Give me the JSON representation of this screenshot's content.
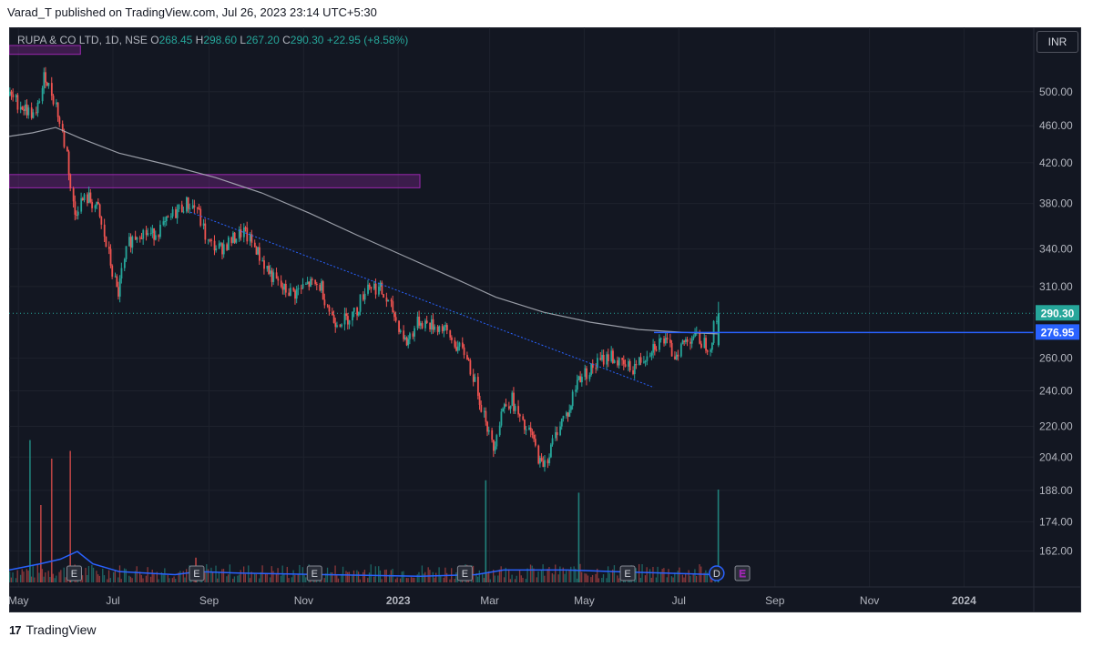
{
  "header": {
    "published": "Varad_T published on TradingView.com, Jul 26, 2023 23:14 UTC+5:30"
  },
  "legend": {
    "symbol": "RUPA & CO LTD, 1D, NSE",
    "o_label": "O",
    "o_value": "268.45",
    "h_label": "H",
    "h_value": "298.60",
    "l_label": "L",
    "l_value": "267.20",
    "c_label": "C",
    "c_value": "290.30",
    "change": "+22.95 (+8.58%)"
  },
  "currency": "INR",
  "footer": {
    "brand": "TradingView",
    "logo": "17"
  },
  "colors": {
    "background": "#131722",
    "grid": "#1e222d",
    "up": "#26a69a",
    "down": "#ef5350",
    "ma": "#b2b5be",
    "zone": "#9c27b0",
    "level": "#2962ff",
    "trend": "#2962ff"
  },
  "chart_data": {
    "type": "candlestick",
    "y_scale": "log",
    "y_ticks": [
      162,
      174,
      188,
      204,
      220,
      240,
      260,
      276.95,
      290.3,
      310,
      340,
      380,
      420,
      460,
      500
    ],
    "y_tick_labels": [
      "162.00",
      "174.00",
      "188.00",
      "204.00",
      "220.00",
      "240.00",
      "260.00",
      "276.95",
      "290.30",
      "310.00",
      "340.00",
      "380.00",
      "420.00",
      "460.00",
      "500.00"
    ],
    "x_range": [
      "2022-04-25",
      "2024-02-15"
    ],
    "x_ticks": [
      {
        "date": "2022-05-01",
        "label": "May"
      },
      {
        "date": "2022-07-01",
        "label": "Jul"
      },
      {
        "date": "2022-09-01",
        "label": "Sep"
      },
      {
        "date": "2022-11-01",
        "label": "Nov"
      },
      {
        "date": "2023-01-01",
        "label": "2023"
      },
      {
        "date": "2023-03-01",
        "label": "Mar"
      },
      {
        "date": "2023-05-01",
        "label": "May"
      },
      {
        "date": "2023-07-01",
        "label": "Jul"
      },
      {
        "date": "2023-09-01",
        "label": "Sep"
      },
      {
        "date": "2023-11-01",
        "label": "Nov"
      },
      {
        "date": "2024-01-01",
        "label": "2024"
      }
    ],
    "close_path": [
      [
        "2022-04-25",
        495
      ],
      [
        "2022-05-05",
        480
      ],
      [
        "2022-05-12",
        470
      ],
      [
        "2022-05-18",
        520
      ],
      [
        "2022-05-25",
        485
      ],
      [
        "2022-06-01",
        430
      ],
      [
        "2022-06-06",
        370
      ],
      [
        "2022-06-10",
        382
      ],
      [
        "2022-06-15",
        385
      ],
      [
        "2022-06-21",
        375
      ],
      [
        "2022-06-28",
        335
      ],
      [
        "2022-07-04",
        305
      ],
      [
        "2022-07-11",
        345
      ],
      [
        "2022-07-18",
        355
      ],
      [
        "2022-07-26",
        352
      ],
      [
        "2022-08-03",
        360
      ],
      [
        "2022-08-10",
        372
      ],
      [
        "2022-08-17",
        380
      ],
      [
        "2022-08-24",
        376
      ],
      [
        "2022-08-31",
        345
      ],
      [
        "2022-09-08",
        340
      ],
      [
        "2022-09-16",
        348
      ],
      [
        "2022-09-23",
        355
      ],
      [
        "2022-10-01",
        340
      ],
      [
        "2022-10-10",
        320
      ],
      [
        "2022-10-18",
        308
      ],
      [
        "2022-10-26",
        305
      ],
      [
        "2022-11-04",
        312
      ],
      [
        "2022-11-12",
        310
      ],
      [
        "2022-11-20",
        285
      ],
      [
        "2022-11-28",
        286
      ],
      [
        "2022-12-05",
        292
      ],
      [
        "2022-12-12",
        312
      ],
      [
        "2022-12-20",
        308
      ],
      [
        "2022-12-28",
        292
      ],
      [
        "2023-01-06",
        270
      ],
      [
        "2023-01-14",
        285
      ],
      [
        "2023-01-22",
        282
      ],
      [
        "2023-01-30",
        280
      ],
      [
        "2023-02-07",
        268
      ],
      [
        "2023-02-14",
        262
      ],
      [
        "2023-02-21",
        240
      ],
      [
        "2023-02-26",
        225
      ],
      [
        "2023-03-03",
        208
      ],
      [
        "2023-03-09",
        230
      ],
      [
        "2023-03-15",
        235
      ],
      [
        "2023-03-22",
        220
      ],
      [
        "2023-03-28",
        215
      ],
      [
        "2023-04-03",
        200
      ],
      [
        "2023-04-08",
        205
      ],
      [
        "2023-04-15",
        222
      ],
      [
        "2023-04-21",
        228
      ],
      [
        "2023-04-27",
        248
      ],
      [
        "2023-05-04",
        252
      ],
      [
        "2023-05-11",
        258
      ],
      [
        "2023-05-18",
        262
      ],
      [
        "2023-05-25",
        255
      ],
      [
        "2023-06-01",
        254
      ],
      [
        "2023-06-08",
        260
      ],
      [
        "2023-06-14",
        268
      ],
      [
        "2023-06-21",
        272
      ],
      [
        "2023-06-28",
        262
      ],
      [
        "2023-07-04",
        270
      ],
      [
        "2023-07-10",
        275
      ],
      [
        "2023-07-17",
        270
      ],
      [
        "2023-07-21",
        268
      ],
      [
        "2023-07-26",
        290.3
      ]
    ],
    "moving_average": [
      [
        "2022-04-25",
        448
      ],
      [
        "2022-05-10",
        452
      ],
      [
        "2022-05-25",
        458
      ],
      [
        "2022-06-10",
        446
      ],
      [
        "2022-07-05",
        430
      ],
      [
        "2022-08-05",
        418
      ],
      [
        "2022-09-05",
        405
      ],
      [
        "2022-10-05",
        390
      ],
      [
        "2022-11-05",
        371
      ],
      [
        "2022-12-05",
        352
      ],
      [
        "2023-01-05",
        334
      ],
      [
        "2023-02-05",
        317
      ],
      [
        "2023-03-05",
        302
      ],
      [
        "2023-04-05",
        291
      ],
      [
        "2023-05-05",
        284
      ],
      [
        "2023-06-05",
        279
      ],
      [
        "2023-07-05",
        277
      ],
      [
        "2023-07-26",
        276
      ]
    ],
    "last_candle": {
      "date": "2023-07-26",
      "open": 268.45,
      "high": 298.6,
      "low": 267.2,
      "close": 290.3
    },
    "horizontal_level": {
      "price": 276.95,
      "from": "2023-06-15",
      "to": "2024-02-15"
    },
    "trendline": {
      "from": [
        "2022-08-20",
        372
      ],
      "to": [
        "2023-06-15",
        242
      ]
    },
    "supply_zone": {
      "price_low": 395,
      "price_high": 408,
      "from": "2022-04-25",
      "to": "2023-01-15"
    },
    "top_zone": {
      "price_low": 548,
      "price_high": 560,
      "from": "2022-04-25",
      "to": "2022-06-10"
    },
    "earnings_markers": [
      "2022-06-06",
      "2022-08-24",
      "2022-11-08",
      "2023-02-13",
      "2023-05-29",
      "2023-08-11"
    ],
    "dividend_markers": [
      "2023-08-05"
    ],
    "marker_labels": {
      "earnings": "E",
      "dividend": "D"
    },
    "volume_spikes": [
      [
        "2022-05-08",
        0.92
      ],
      [
        "2022-05-22",
        0.8
      ],
      [
        "2022-06-03",
        0.85
      ],
      [
        "2022-05-15",
        0.5
      ],
      [
        "2022-08-23",
        0.16
      ],
      [
        "2023-02-26",
        0.66
      ],
      [
        "2023-04-27",
        0.58
      ],
      [
        "2023-07-26",
        0.6
      ]
    ],
    "avg_volume_curve": [
      [
        "2022-04-25",
        0.08
      ],
      [
        "2022-05-15",
        0.12
      ],
      [
        "2022-05-28",
        0.15
      ],
      [
        "2022-06-08",
        0.2
      ],
      [
        "2022-06-18",
        0.12
      ],
      [
        "2022-07-05",
        0.07
      ],
      [
        "2022-08-10",
        0.05
      ],
      [
        "2022-08-25",
        0.07
      ],
      [
        "2022-09-20",
        0.06
      ],
      [
        "2022-11-15",
        0.05
      ],
      [
        "2023-01-15",
        0.04
      ],
      [
        "2023-02-20",
        0.05
      ],
      [
        "2023-03-10",
        0.08
      ],
      [
        "2023-04-20",
        0.08
      ],
      [
        "2023-05-20",
        0.07
      ],
      [
        "2023-07-26",
        0.05
      ]
    ]
  }
}
